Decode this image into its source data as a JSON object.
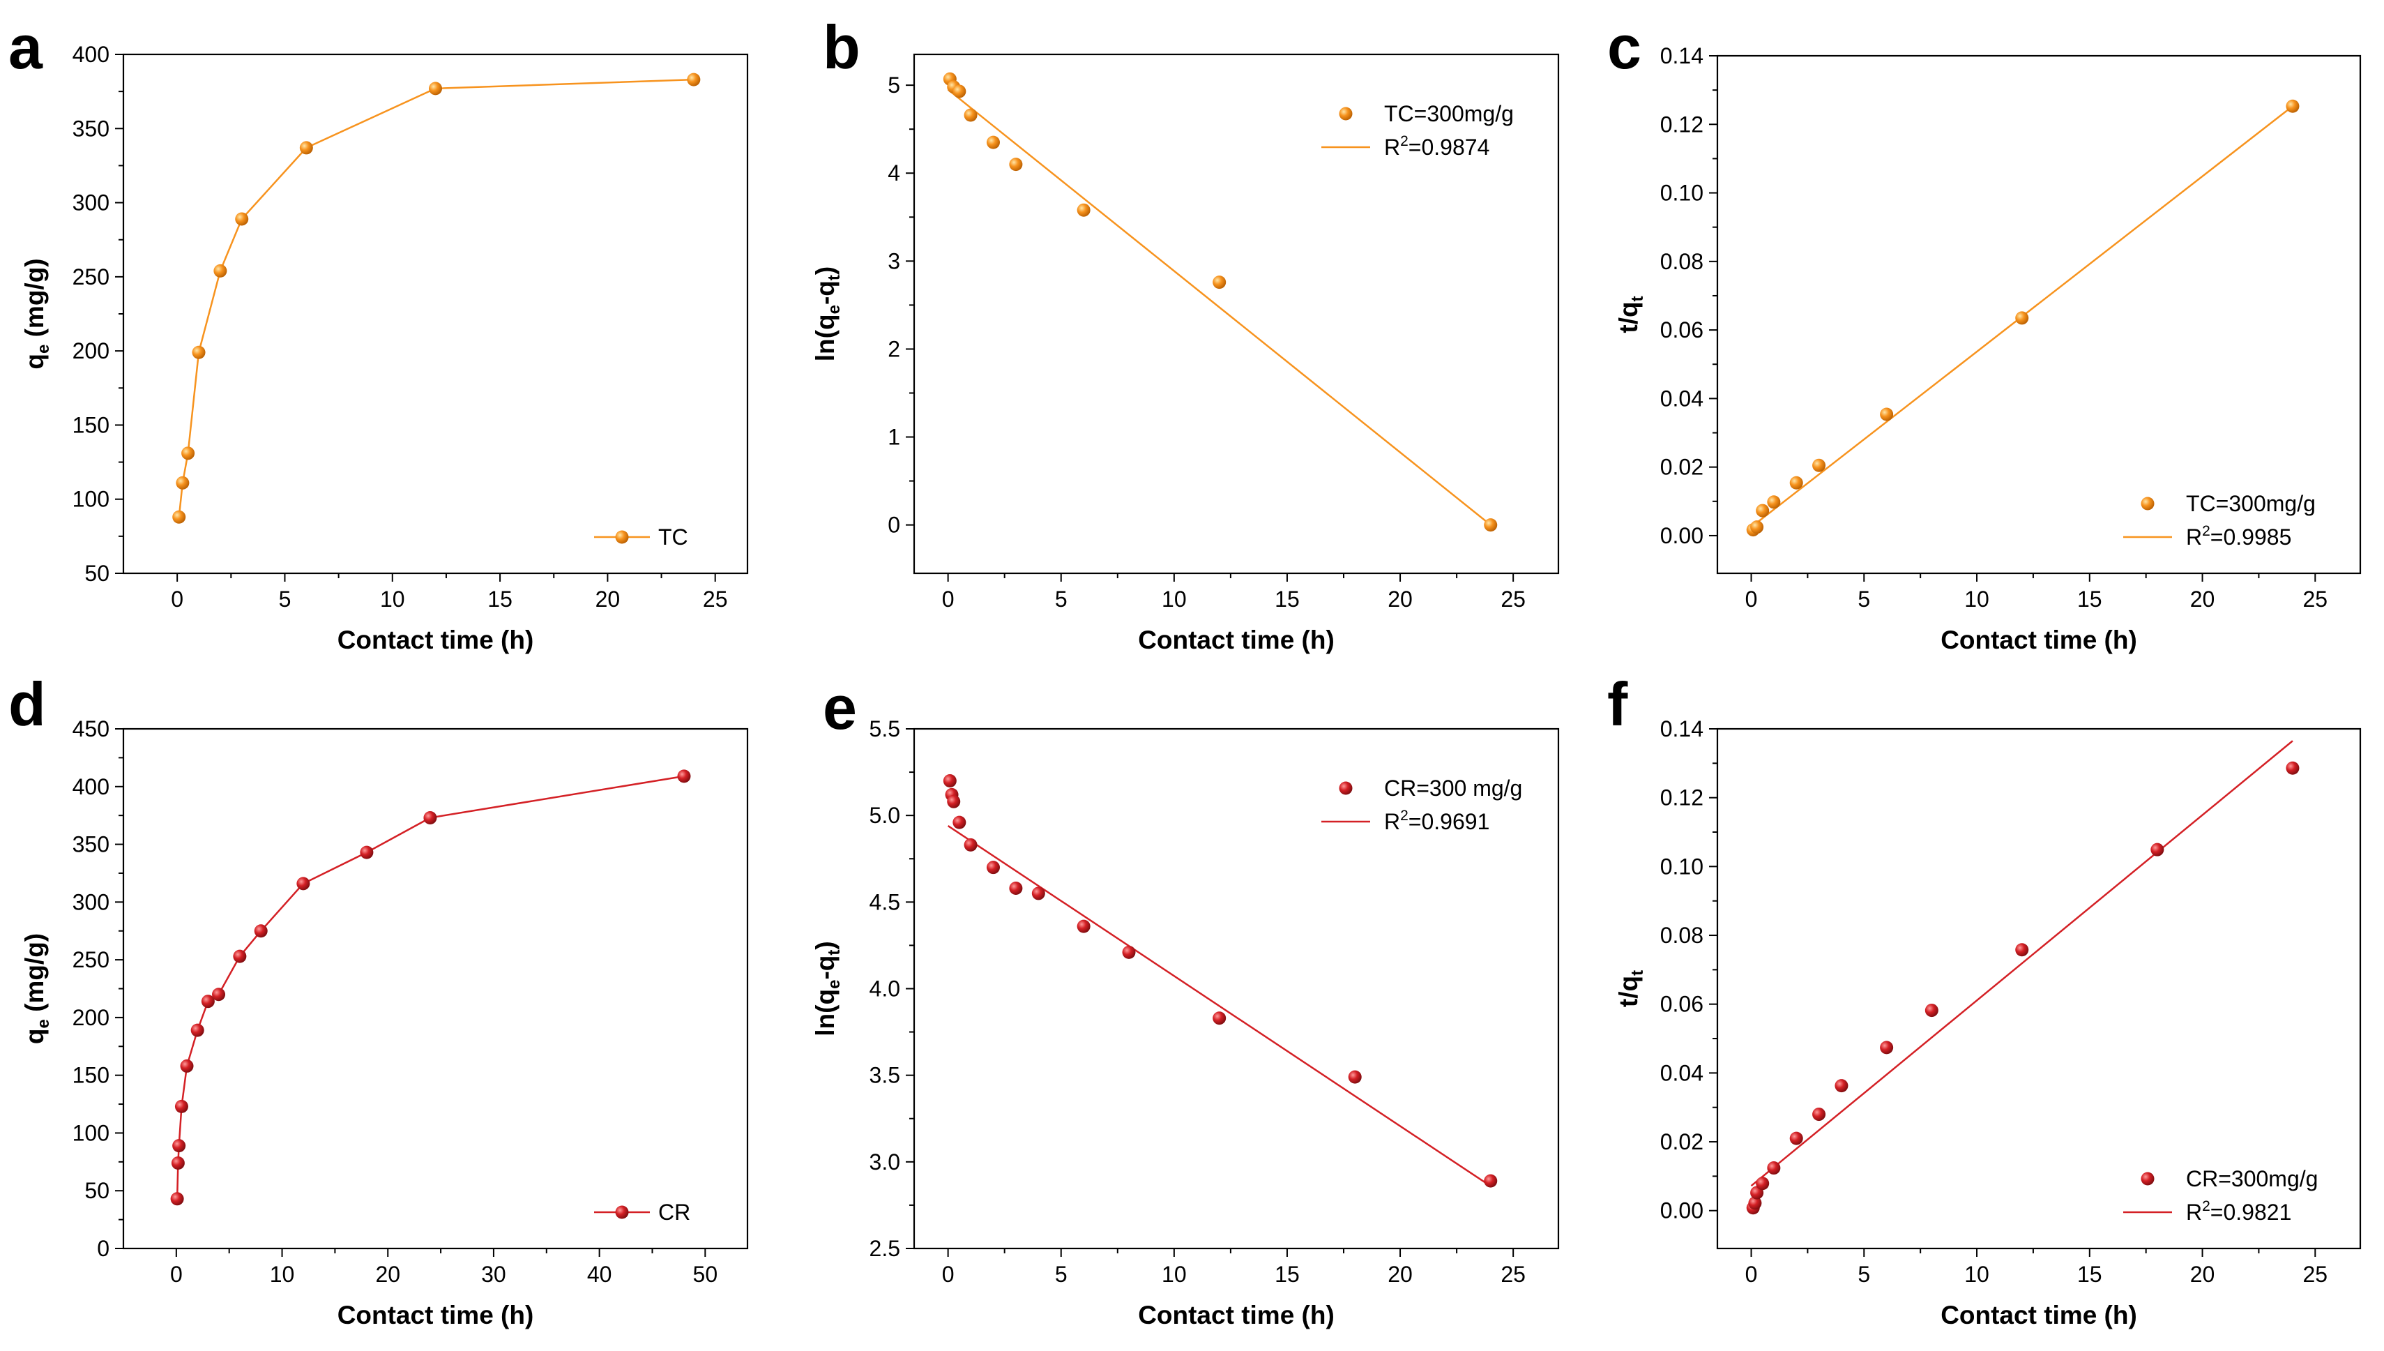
{
  "colors": {
    "orange": "#f7931e",
    "orange_light": "#ffd27a",
    "orange_dark": "#c96a00",
    "red": "#d42025",
    "red_light": "#ff8080",
    "red_dark": "#8c0f12"
  },
  "chart_data": [
    {
      "id": "a",
      "letter": "a",
      "type": "line",
      "connected": true,
      "color": "orange",
      "xlabel": "Contact time (h)",
      "ylabel_main": "q",
      "ylabel_sub": "e",
      "ylabel_tail": " (mg/g)",
      "xlim": [
        -2.5,
        26.5
      ],
      "ylim": [
        50,
        400
      ],
      "xticks": [
        0,
        5,
        10,
        15,
        20,
        25
      ],
      "yticks": [
        50,
        100,
        150,
        200,
        250,
        300,
        350,
        400
      ],
      "ytick_labels": [
        "50",
        "100",
        "150",
        "200",
        "250",
        "300",
        "350",
        "400"
      ],
      "series": [
        {
          "name": "TC",
          "x": [
            0.0833,
            0.25,
            0.5,
            1,
            2,
            3,
            6,
            12,
            24
          ],
          "y": [
            88,
            111,
            131,
            199,
            254,
            289,
            337,
            377,
            383
          ]
        }
      ],
      "legend": [
        {
          "text": "TC",
          "style": "line-marker"
        }
      ],
      "legend_position": "bottom-right"
    },
    {
      "id": "b",
      "letter": "b",
      "type": "scatter",
      "color": "orange",
      "xlabel": "Contact time (h)",
      "ylabel_main": "ln(q",
      "ylabel_sub": "e",
      "ylabel_mid": "-q",
      "ylabel_sub2": "t",
      "ylabel_tail": ")",
      "xlim": [
        -1.5,
        27
      ],
      "ylim": [
        -0.55,
        5.35
      ],
      "xticks": [
        0,
        5,
        10,
        15,
        20,
        25
      ],
      "yticks": [
        0,
        1,
        2,
        3,
        4,
        5
      ],
      "ytick_labels": [
        "0",
        "1",
        "2",
        "3",
        "4",
        "5"
      ],
      "series": [
        {
          "name": "TC=300mg/g",
          "x": [
            0.0833,
            0.25,
            0.5,
            1,
            2,
            3,
            6,
            12,
            24
          ],
          "y": [
            5.07,
            4.98,
            4.93,
            4.66,
            4.35,
            4.1,
            3.58,
            2.76,
            0.0
          ]
        }
      ],
      "fit": {
        "x": [
          0,
          24
        ],
        "y": [
          4.95,
          0.0
        ]
      },
      "legend": [
        {
          "text": "TC=300mg/g",
          "style": "marker"
        },
        {
          "text_main": "R",
          "text_sup": "2",
          "text_tail": "=0.9874",
          "style": "line"
        }
      ],
      "legend_position": "top-right"
    },
    {
      "id": "c",
      "letter": "c",
      "type": "scatter",
      "color": "orange",
      "xlabel": "Contact time (h)",
      "ylabel_main": "t/q",
      "ylabel_sub": "t",
      "ylabel_tail": "",
      "xlim": [
        -1.5,
        27
      ],
      "ylim": [
        -0.011,
        0.14
      ],
      "xticks": [
        0,
        5,
        10,
        15,
        20,
        25
      ],
      "yticks": [
        0,
        0.02,
        0.04,
        0.06,
        0.08,
        0.1,
        0.12,
        0.14
      ],
      "ytick_labels": [
        "0.00",
        "0.02",
        "0.04",
        "0.06",
        "0.08",
        "0.10",
        "0.12",
        "0.14"
      ],
      "series": [
        {
          "name": "TC=300mg/g",
          "x": [
            0.0833,
            0.25,
            0.5,
            1,
            2,
            3,
            6,
            12,
            24
          ],
          "y": [
            0.0017,
            0.0025,
            0.0073,
            0.0098,
            0.0154,
            0.0205,
            0.0354,
            0.0635,
            0.1253
          ]
        }
      ],
      "fit": {
        "x": [
          0,
          24
        ],
        "y": [
          0.0025,
          0.1253
        ]
      },
      "legend": [
        {
          "text": "TC=300mg/g",
          "style": "marker"
        },
        {
          "text_main": "R",
          "text_sup": "2",
          "text_tail": "=0.9985",
          "style": "line"
        }
      ],
      "legend_position": "bottom-right"
    },
    {
      "id": "d",
      "letter": "d",
      "type": "line",
      "connected": true,
      "color": "red",
      "xlabel": "Contact time (h)",
      "ylabel_main": "q",
      "ylabel_sub": "e",
      "ylabel_tail": " (mg/g)",
      "xlim": [
        -5,
        54
      ],
      "ylim": [
        0,
        450
      ],
      "xticks": [
        0,
        10,
        20,
        30,
        40,
        50
      ],
      "yticks": [
        0,
        50,
        100,
        150,
        200,
        250,
        300,
        350,
        400,
        450
      ],
      "ytick_labels": [
        "0",
        "50",
        "100",
        "150",
        "200",
        "250",
        "300",
        "350",
        "400",
        "450"
      ],
      "series": [
        {
          "name": "CR",
          "x": [
            0.0833,
            0.1667,
            0.25,
            0.5,
            1,
            2,
            3,
            4,
            6,
            8,
            12,
            18,
            24,
            48
          ],
          "y": [
            43,
            74,
            89,
            123,
            158,
            189,
            214,
            220,
            253,
            275,
            316,
            343,
            373,
            409
          ]
        }
      ],
      "legend": [
        {
          "text": "CR",
          "style": "line-marker"
        }
      ],
      "legend_position": "bottom-right"
    },
    {
      "id": "e",
      "letter": "e",
      "type": "scatter",
      "color": "red",
      "xlabel": "Contact time (h)",
      "ylabel_main": "ln(q",
      "ylabel_sub": "e",
      "ylabel_mid": "-q",
      "ylabel_sub2": "t",
      "ylabel_tail": ")",
      "xlim": [
        -1.5,
        27
      ],
      "ylim": [
        2.5,
        5.5
      ],
      "xticks": [
        0,
        5,
        10,
        15,
        20,
        25
      ],
      "yticks": [
        2.5,
        3.0,
        3.5,
        4.0,
        4.5,
        5.0,
        5.5
      ],
      "ytick_labels": [
        "2.5",
        "3.0",
        "3.5",
        "4.0",
        "4.5",
        "5.0",
        "5.5"
      ],
      "series": [
        {
          "name": "CR=300 mg/g",
          "x": [
            0.0833,
            0.1667,
            0.25,
            0.5,
            1,
            2,
            3,
            4,
            6,
            8,
            12,
            18,
            24
          ],
          "y": [
            5.2,
            5.12,
            5.08,
            4.96,
            4.83,
            4.7,
            4.58,
            4.55,
            4.36,
            4.21,
            3.83,
            3.49,
            2.89
          ]
        }
      ],
      "fit": {
        "x": [
          0,
          24
        ],
        "y": [
          4.94,
          2.86
        ]
      },
      "legend": [
        {
          "text": "CR=300 mg/g",
          "style": "marker"
        },
        {
          "text_main": "R",
          "text_sup": "2",
          "text_tail": "=0.9691",
          "style": "line"
        }
      ],
      "legend_position": "top-right"
    },
    {
      "id": "f",
      "letter": "f",
      "type": "scatter",
      "color": "red",
      "xlabel": "Contact time (h)",
      "ylabel_main": "t/q",
      "ylabel_sub": "t",
      "ylabel_tail": "",
      "xlim": [
        -1.5,
        27
      ],
      "ylim": [
        -0.011,
        0.14
      ],
      "xticks": [
        0,
        5,
        10,
        15,
        20,
        25
      ],
      "yticks": [
        0,
        0.02,
        0.04,
        0.06,
        0.08,
        0.1,
        0.12,
        0.14
      ],
      "ytick_labels": [
        "0.00",
        "0.02",
        "0.04",
        "0.06",
        "0.08",
        "0.10",
        "0.12",
        "0.14"
      ],
      "series": [
        {
          "name": "CR=300mg/g",
          "x": [
            0.0833,
            0.1667,
            0.25,
            0.5,
            1,
            2,
            3,
            4,
            6,
            8,
            12,
            18,
            24
          ],
          "y": [
            0.0008,
            0.0022,
            0.0052,
            0.0079,
            0.0124,
            0.021,
            0.028,
            0.0363,
            0.0474,
            0.0582,
            0.0758,
            0.1049,
            0.1286
          ]
        }
      ],
      "fit": {
        "x": [
          0,
          24
        ],
        "y": [
          0.0072,
          0.1365
        ]
      },
      "legend": [
        {
          "text": "CR=300mg/g",
          "style": "marker"
        },
        {
          "text_main": "R",
          "text_sup": "2",
          "text_tail": "=0.9821",
          "style": "line"
        }
      ],
      "legend_position": "bottom-right"
    }
  ]
}
